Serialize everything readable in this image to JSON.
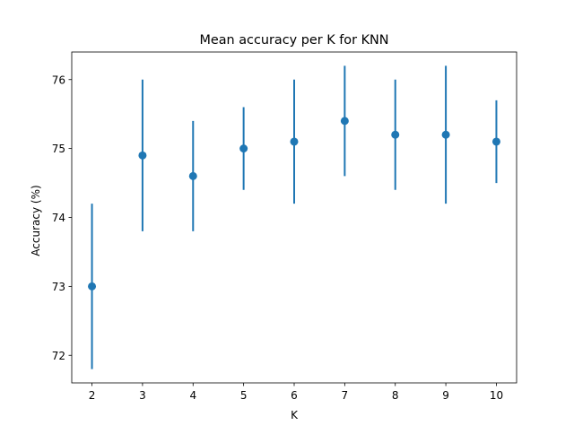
{
  "chart_data": {
    "type": "scatter",
    "title": "Mean accuracy per K for KNN",
    "xlabel": "K",
    "ylabel": "Accuracy (%)",
    "xlim": [
      1.6,
      10.4
    ],
    "ylim": [
      71.6,
      76.4
    ],
    "x_ticks": [
      "2",
      "3",
      "4",
      "5",
      "6",
      "7",
      "8",
      "9",
      "10"
    ],
    "y_ticks": [
      "72",
      "73",
      "74",
      "75",
      "76"
    ],
    "grid": false,
    "legend": "none",
    "series": [
      {
        "marker": "circle",
        "color": "#1f77b4",
        "points": [
          {
            "x": 2,
            "y": 73.0,
            "err_low": 71.8,
            "err_high": 74.2
          },
          {
            "x": 3,
            "y": 74.9,
            "err_low": 73.8,
            "err_high": 76.0
          },
          {
            "x": 4,
            "y": 74.6,
            "err_low": 73.8,
            "err_high": 75.4
          },
          {
            "x": 5,
            "y": 75.0,
            "err_low": 74.4,
            "err_high": 75.6
          },
          {
            "x": 6,
            "y": 75.1,
            "err_low": 74.2,
            "err_high": 76.0
          },
          {
            "x": 7,
            "y": 75.4,
            "err_low": 74.6,
            "err_high": 76.2
          },
          {
            "x": 8,
            "y": 75.2,
            "err_low": 74.4,
            "err_high": 76.0
          },
          {
            "x": 9,
            "y": 75.2,
            "err_low": 74.2,
            "err_high": 76.2
          },
          {
            "x": 10,
            "y": 75.1,
            "err_low": 74.5,
            "err_high": 75.7
          }
        ]
      }
    ]
  }
}
